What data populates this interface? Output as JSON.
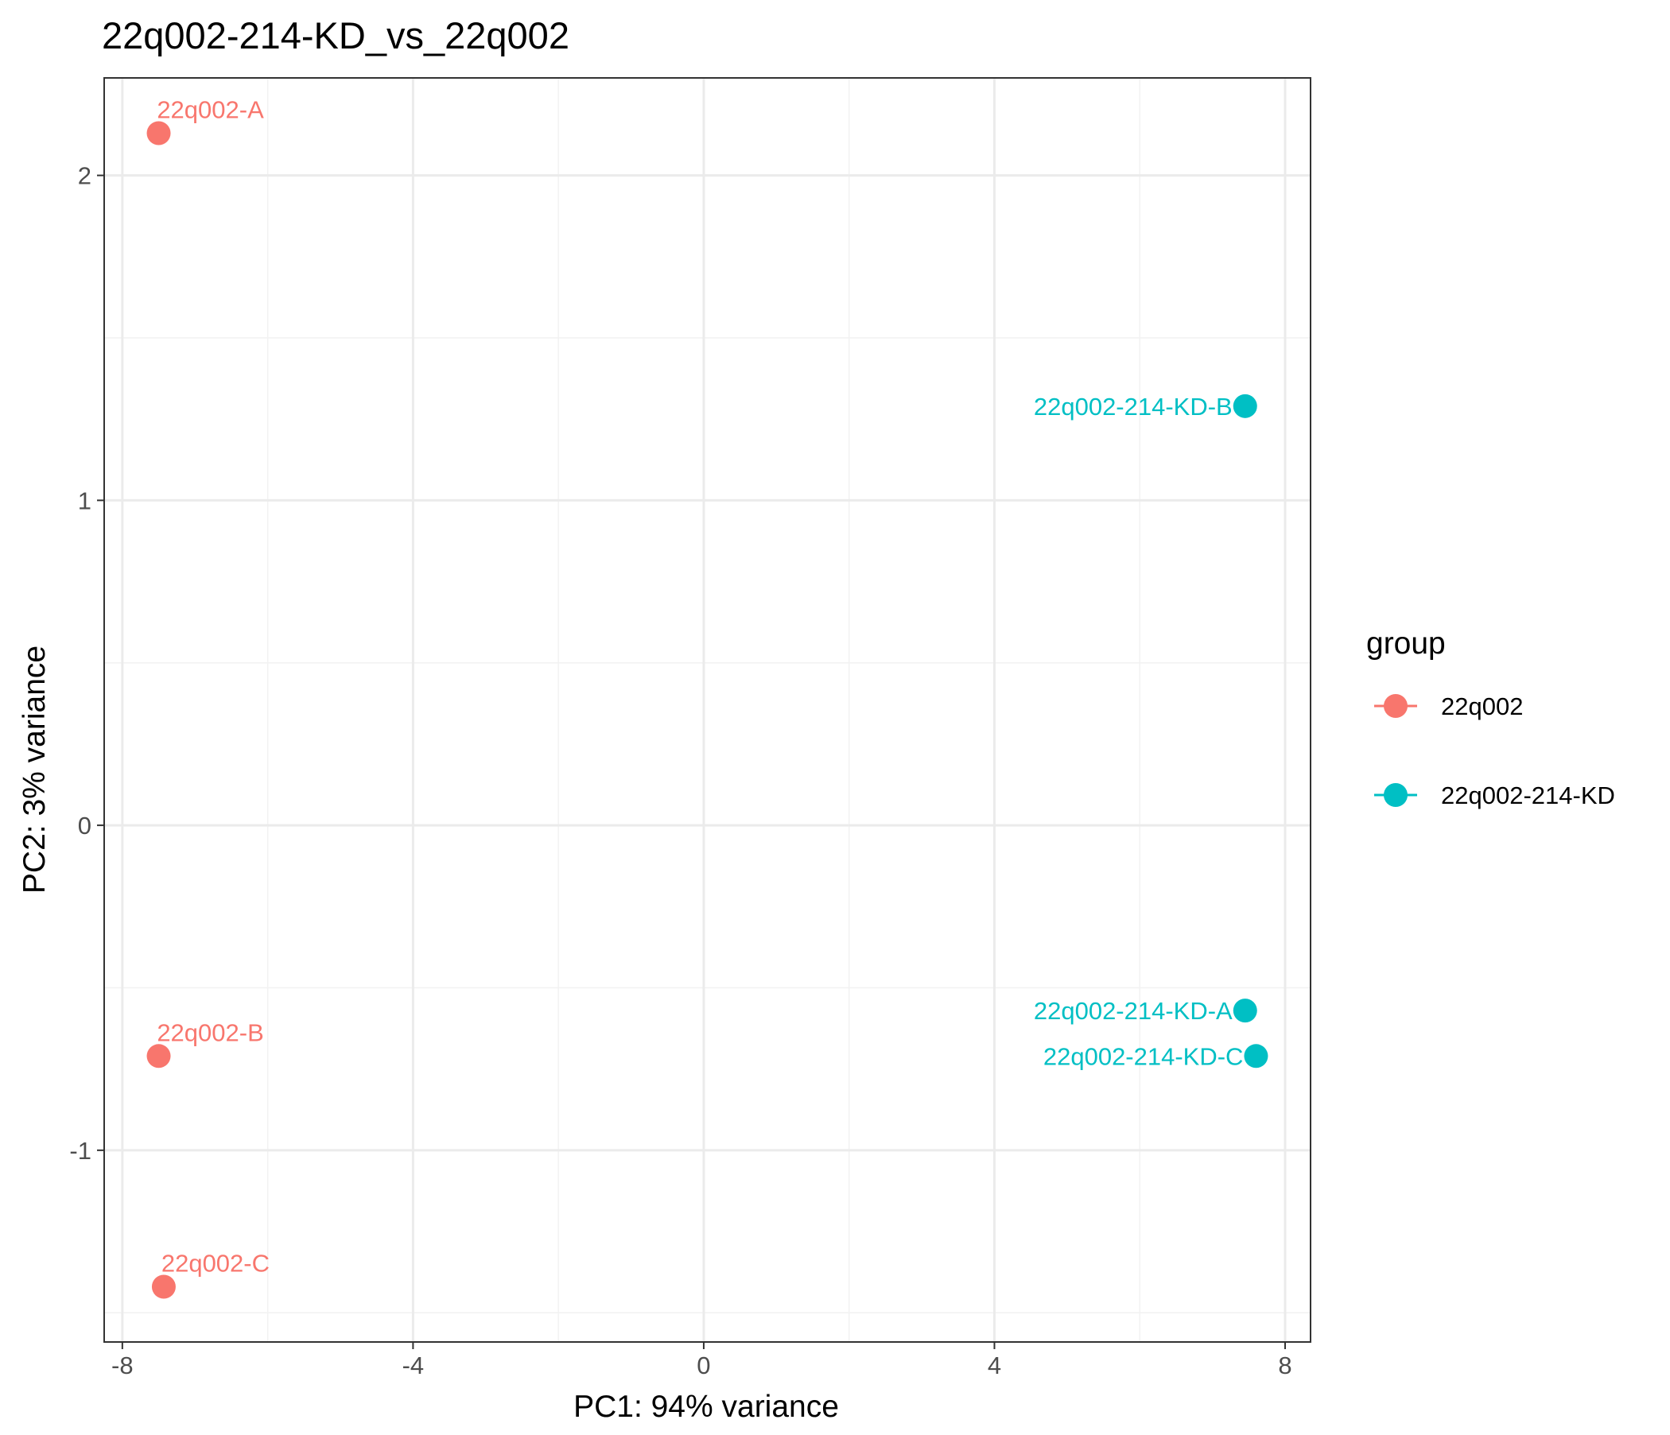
{
  "chart_data": {
    "type": "scatter",
    "title": "22q002-214-KD_vs_22q002",
    "xlabel": "PC1: 94% variance",
    "ylabel": "PC2: 3% variance",
    "xlim": [
      -8.25,
      8.35
    ],
    "ylim": [
      -1.59,
      2.3
    ],
    "x_ticks": [
      -8,
      -4,
      0,
      4,
      8
    ],
    "x_tick_labels": [
      "-8",
      "-4",
      "0",
      "4",
      "8"
    ],
    "y_ticks": [
      -1,
      0,
      1,
      2
    ],
    "y_tick_labels": [
      "-1",
      "0",
      "1",
      "2"
    ],
    "grid": true,
    "legend": {
      "title": "group",
      "position": "right",
      "entries": [
        {
          "label": "22q002",
          "color": "#F8766D"
        },
        {
          "label": "22q002-214-KD",
          "color": "#00BFC4"
        }
      ]
    },
    "points": [
      {
        "label": "22q002-A",
        "group": "22q002",
        "x": -7.5,
        "y": 2.13,
        "label_side": "above"
      },
      {
        "label": "22q002-B",
        "group": "22q002",
        "x": -7.5,
        "y": -0.71,
        "label_side": "above"
      },
      {
        "label": "22q002-C",
        "group": "22q002",
        "x": -7.43,
        "y": -1.42,
        "label_side": "above"
      },
      {
        "label": "22q002-214-KD-B",
        "group": "22q002-214-KD",
        "x": 7.45,
        "y": 1.29,
        "label_side": "left"
      },
      {
        "label": "22q002-214-KD-A",
        "group": "22q002-214-KD",
        "x": 7.45,
        "y": -0.57,
        "label_side": "left"
      },
      {
        "label": "22q002-214-KD-C",
        "group": "22q002-214-KD",
        "x": 7.6,
        "y": -0.71,
        "label_side": "left"
      }
    ]
  }
}
